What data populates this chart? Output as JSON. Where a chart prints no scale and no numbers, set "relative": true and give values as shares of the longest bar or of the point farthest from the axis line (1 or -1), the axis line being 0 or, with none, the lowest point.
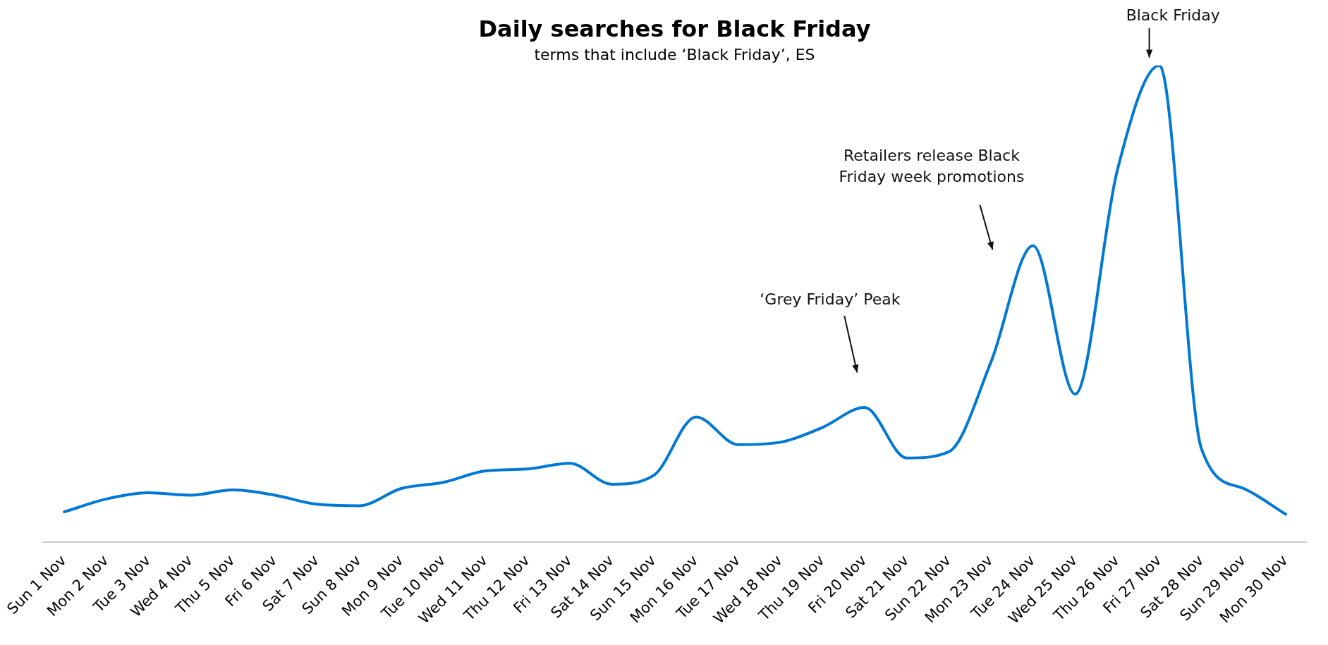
{
  "chart_data": {
    "type": "line",
    "title": "Daily searches for Black Friday",
    "subtitle": "terms that include ‘Black Friday’, ES",
    "relative": true,
    "categories": [
      "Sun 1 Nov",
      "Mon 2 Nov",
      "Tue 3 Nov",
      "Wed 4 Nov",
      "Thu 5 Nov",
      "Fri 6 Nov",
      "Sat 7 Nov",
      "Sun 8 Nov",
      "Mon 9 Nov",
      "Tue 10 Nov",
      "Wed 11 Nov",
      "Thu 12 Nov",
      "Fri 13 Nov",
      "Sat 14 Nov",
      "Sun 15 Nov",
      "Mon 16 Nov",
      "Tue 17 Nov",
      "Wed 18 Nov",
      "Thu 19 Nov",
      "Fri 20 Nov",
      "Sat 21 Nov",
      "Sun 22 Nov",
      "Mon 23 Nov",
      "Tue 24 Nov",
      "Wed 25 Nov",
      "Thu 26 Nov",
      "Fri 27 Nov",
      "Sat 28 Nov",
      "Sun 29 Nov",
      "Mon 30 Nov"
    ],
    "series": [
      {
        "color": "#0078d4",
        "values": [
          0.064,
          0.091,
          0.104,
          0.099,
          0.11,
          0.099,
          0.08,
          0.077,
          0.113,
          0.126,
          0.15,
          0.154,
          0.166,
          0.122,
          0.141,
          0.263,
          0.205,
          0.21,
          0.241,
          0.283,
          0.177,
          0.19,
          0.378,
          0.622,
          0.311,
          0.78,
          1,
          0.196,
          0.113,
          0.059
        ]
      }
    ],
    "annotations": [
      "‘Grey Friday’ Peak",
      "Retailers release Black Friday week promotions",
      "Black Friday"
    ],
    "grid": false,
    "legend": false,
    "marker": "none",
    "line_style": "solid"
  }
}
